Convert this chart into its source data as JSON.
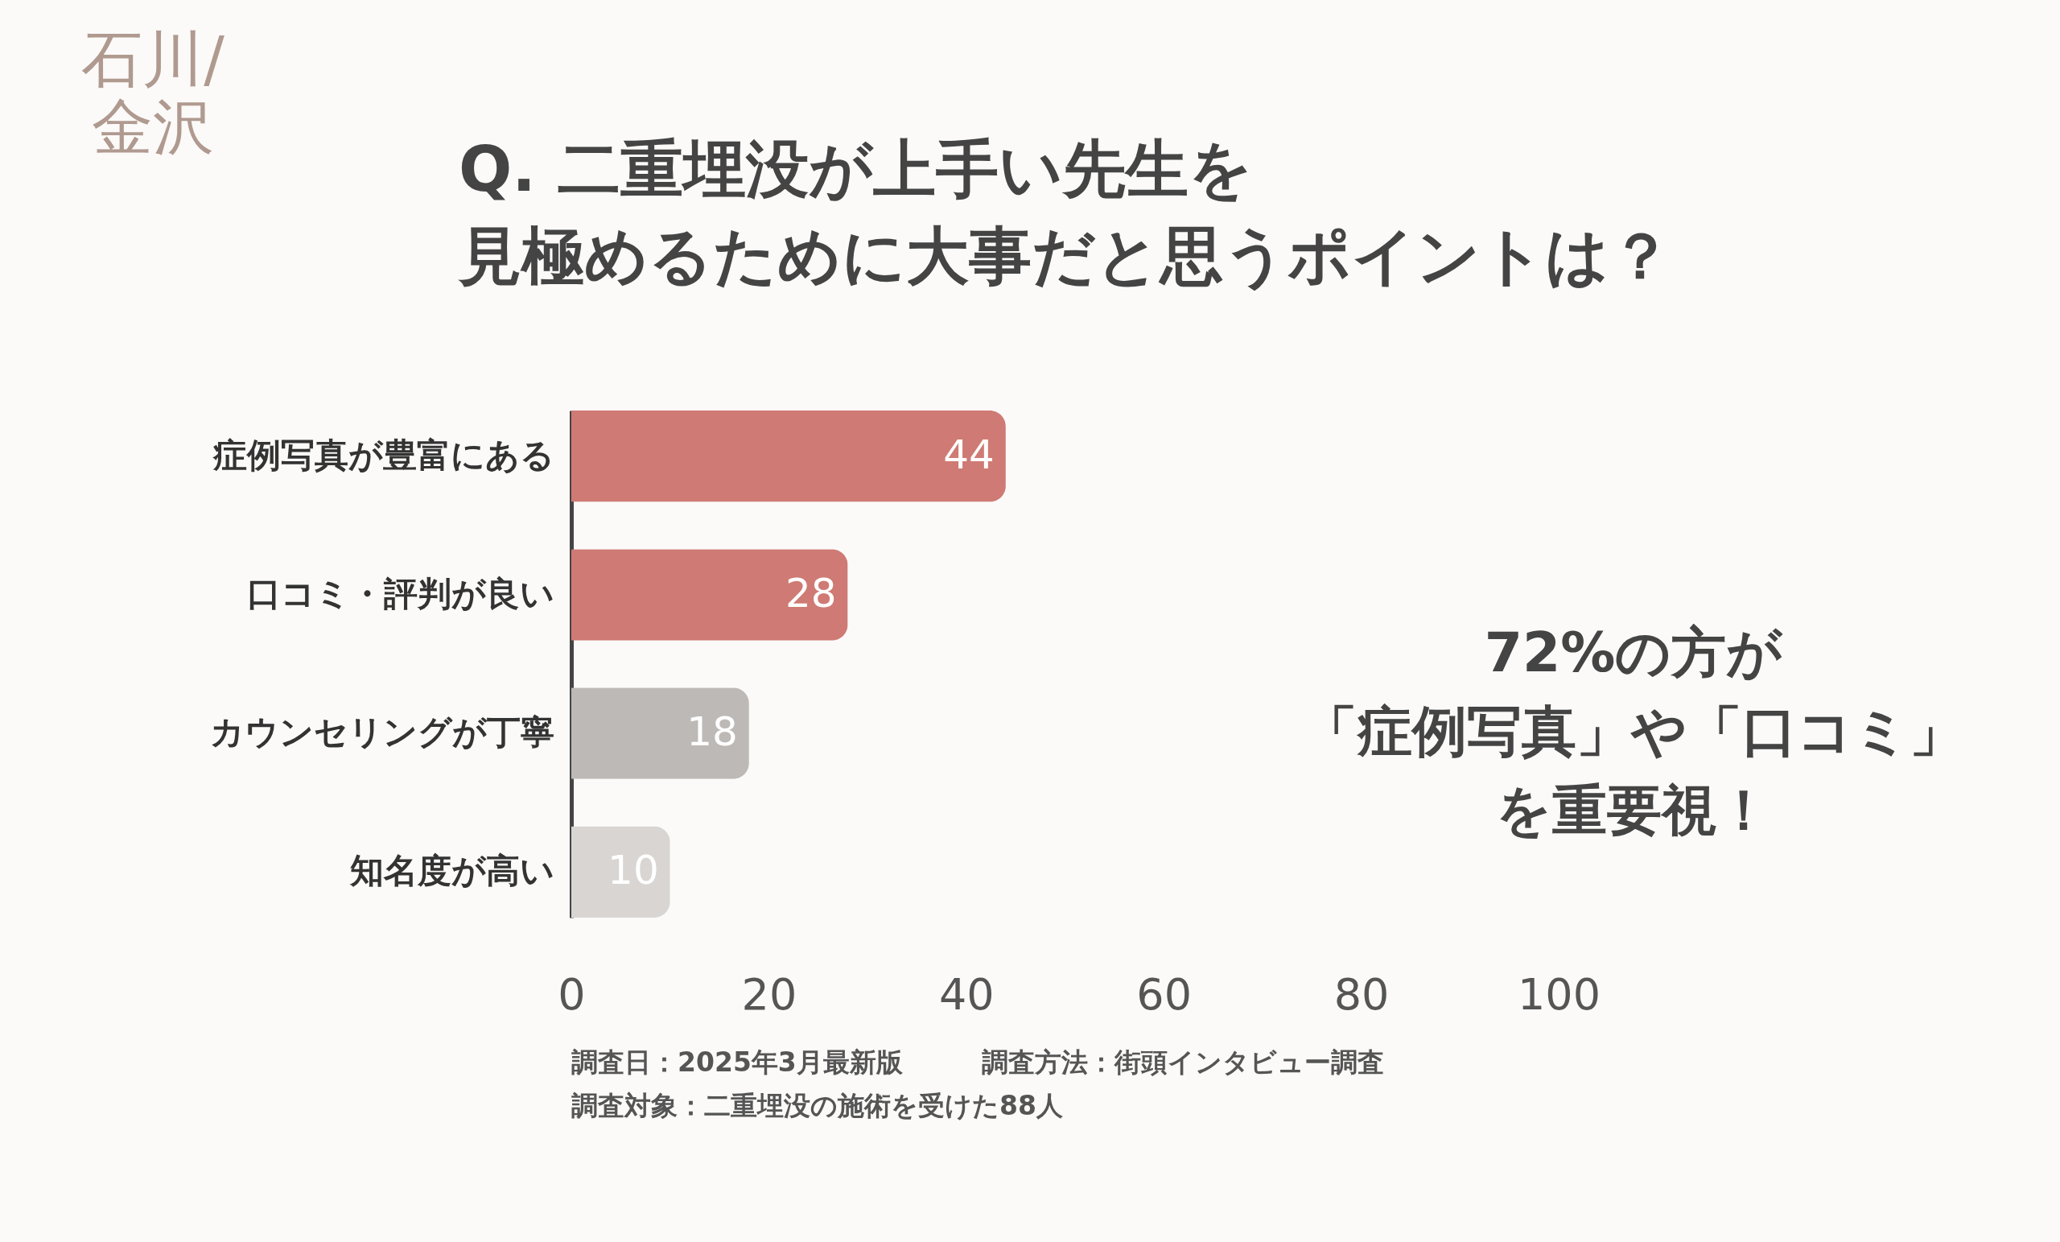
{
  "chart_data": {
    "type": "bar",
    "orientation": "horizontal",
    "title": "Q. 二重埋没が上手い先生を見極めるために大事だと思うポイントは？",
    "categories": [
      "症例写真が豊富にある",
      "口コミ・評判が良い",
      "カウンセリングが丁寧",
      "知名度が高い"
    ],
    "values": [
      44,
      28,
      18,
      10
    ],
    "colors": [
      "#cf7a74",
      "#cf7a74",
      "#bdb9b6",
      "#d8d5d3"
    ],
    "xlim": [
      0,
      100
    ],
    "xticks": [
      0,
      20,
      40,
      60,
      80,
      100
    ],
    "data_labels": true,
    "annotations": [
      "石川/金沢",
      "72%の方が「症例写真」や「口コミ」を重要視！",
      "調査日：2025年3月最新版",
      "調査方法：街頭インタビュー調査",
      "調査対象：二重埋没の施術を受けた88人"
    ]
  }
}
